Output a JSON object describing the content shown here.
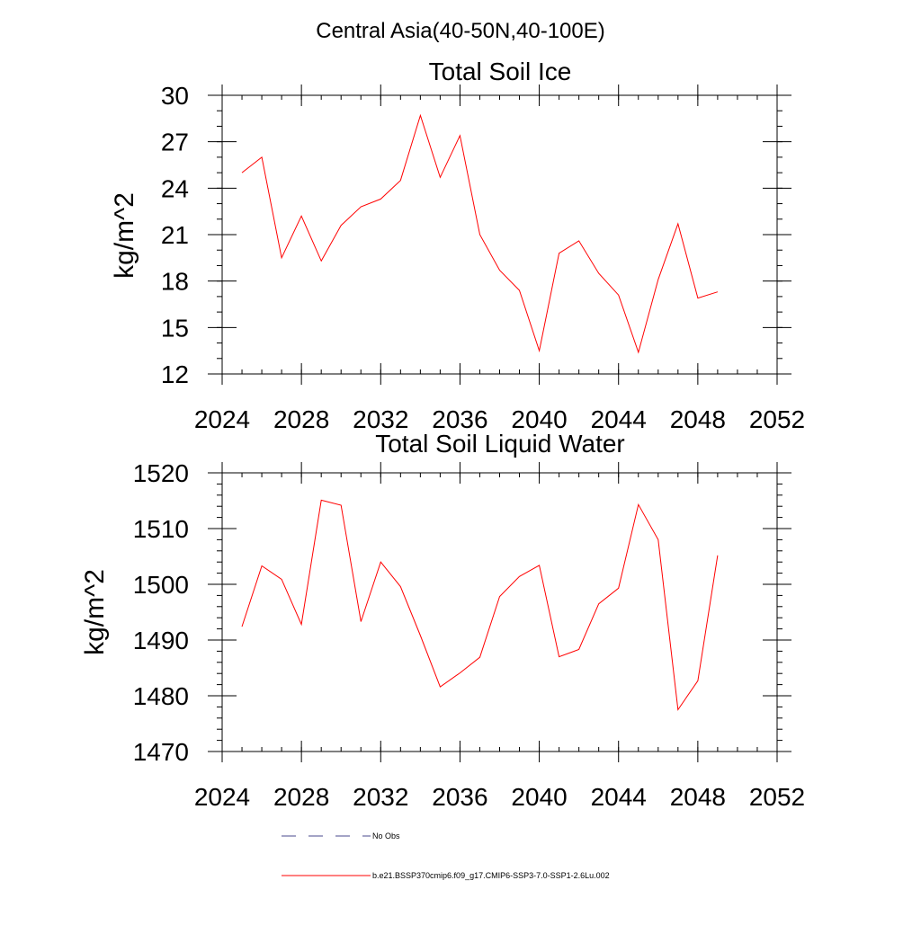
{
  "figure": {
    "title": "Central Asia(40-50N,40-100E)"
  },
  "chart_data": [
    {
      "type": "line",
      "title": "Total Soil Ice",
      "xlabel": "",
      "ylabel": "kg/m^2",
      "xlim": [
        2024,
        2052
      ],
      "ylim": [
        12,
        30
      ],
      "xticks": [
        "2024",
        "2028",
        "2032",
        "2036",
        "2040",
        "2044",
        "2048",
        "2052"
      ],
      "yticks": [
        "12",
        "15",
        "18",
        "21",
        "24",
        "27",
        "30"
      ],
      "grid": false,
      "series": [
        {
          "name": "b.e21.BSSP370cmip6.f09_g17.CMIP6-SSP3-7.0-SSP1-2.6Lu.002",
          "color": "#ff0000",
          "x": [
            2025,
            2026,
            2027,
            2028,
            2029,
            2030,
            2031,
            2032,
            2033,
            2034,
            2035,
            2036,
            2037,
            2038,
            2039,
            2040,
            2041,
            2042,
            2043,
            2044,
            2045,
            2046,
            2047,
            2048,
            2049
          ],
          "values": [
            25.0,
            26.0,
            19.5,
            22.2,
            19.3,
            21.6,
            22.8,
            23.3,
            24.5,
            28.7,
            24.7,
            27.4,
            21.0,
            18.7,
            17.4,
            13.5,
            19.8,
            20.6,
            18.5,
            17.1,
            13.4,
            18.1,
            21.7,
            16.9,
            17.3
          ]
        }
      ]
    },
    {
      "type": "line",
      "title": "Total Soil Liquid Water",
      "xlabel": "",
      "ylabel": "kg/m^2",
      "xlim": [
        2024,
        2052
      ],
      "ylim": [
        1470,
        1520
      ],
      "xticks": [
        "2024",
        "2028",
        "2032",
        "2036",
        "2040",
        "2044",
        "2048",
        "2052"
      ],
      "yticks": [
        "1470",
        "1480",
        "1490",
        "1500",
        "1510",
        "1520"
      ],
      "grid": false,
      "series": [
        {
          "name": "b.e21.BSSP370cmip6.f09_g17.CMIP6-SSP3-7.0-SSP1-2.6Lu.002",
          "color": "#ff0000",
          "x": [
            2025,
            2026,
            2027,
            2028,
            2029,
            2030,
            2031,
            2032,
            2033,
            2034,
            2035,
            2036,
            2037,
            2038,
            2039,
            2040,
            2041,
            2042,
            2043,
            2044,
            2045,
            2046,
            2047,
            2048,
            2049
          ],
          "values": [
            1492.4,
            1503.3,
            1500.9,
            1492.8,
            1515.1,
            1514.2,
            1493.3,
            1504.0,
            1499.6,
            1490.8,
            1481.6,
            1484.1,
            1486.9,
            1497.8,
            1501.4,
            1503.4,
            1487.0,
            1488.3,
            1496.5,
            1499.3,
            1514.3,
            1508.0,
            1477.5,
            1482.7,
            1505.2
          ]
        }
      ]
    }
  ],
  "legend": {
    "entries": [
      {
        "label": "No Obs",
        "color": "#4a4a8c",
        "style": "dashed"
      },
      {
        "label": "b.e21.BSSP370cmip6.f09_g17.CMIP6-SSP3-7.0-SSP1-2.6Lu.002",
        "color": "#ff0000",
        "style": "solid"
      }
    ]
  }
}
